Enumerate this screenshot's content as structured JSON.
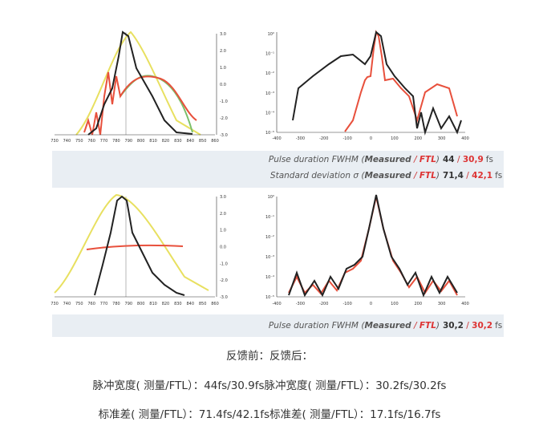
{
  "plots": [
    {
      "xticks": [
        "730",
        "740",
        "750",
        "760",
        "770",
        "780",
        "790",
        "800",
        "810",
        "820",
        "830",
        "840",
        "850",
        "860"
      ],
      "yticks": [
        "3.0",
        "2.0",
        "1.0",
        "0.0",
        "-1.0",
        "-2.0",
        "-3.0"
      ]
    },
    {
      "xticks": [
        "-400",
        "-300",
        "-200",
        "-100",
        "0",
        "100",
        "200",
        "300",
        "400"
      ],
      "yticks": [
        "10⁰",
        "10⁻¹",
        "10⁻²",
        "10⁻³",
        "10⁻⁴",
        "10⁻⁵"
      ]
    },
    {
      "xticks": [
        "730",
        "740",
        "750",
        "760",
        "770",
        "780",
        "790",
        "800",
        "810",
        "820",
        "830",
        "840",
        "850",
        "860"
      ],
      "yticks": [
        "3.0",
        "2.0",
        "1.0",
        "0.0",
        "-1.0",
        "-2.0",
        "-3.0"
      ]
    },
    {
      "xticks": [
        "-400",
        "-300",
        "-200",
        "-100",
        "0",
        "100",
        "200",
        "300",
        "400"
      ],
      "yticks": [
        "10⁰",
        "10⁻¹",
        "10⁻²",
        "10⁻³",
        "10⁻⁴",
        "10⁻⁵"
      ]
    }
  ],
  "bands": [
    [
      {
        "prefix": "Pulse duration FWHM (",
        "measured": "Measured",
        "sep": " / ",
        "ftl": "FTL",
        "suffix": ")",
        "v1": "44",
        "v2": "30,9",
        "unit": "fs"
      },
      {
        "prefix": "Standard deviation σ (",
        "measured": "Measured",
        "sep": " / ",
        "ftl": "FTL",
        "suffix": ")",
        "v1": "71,4",
        "v2": "42,1",
        "unit": "fs"
      }
    ],
    [
      {
        "prefix": "Pulse duration FWHM (",
        "measured": "Measured",
        "sep": " / ",
        "ftl": "FTL",
        "suffix": ")",
        "v1": "30,2",
        "v2": "30,2",
        "unit": "fs"
      }
    ]
  ],
  "caption": [
    "反馈前：反馈后：",
    "脉冲宽度( 测量/FTL）：44fs/30.9fs脉冲宽度( 测量/FTL）：30.2fs/30.2fs",
    "标准差( 测量/FTL）：71.4fs/42.1fs标准差( 测量/FTL）：17.1fs/16.7fs"
  ]
}
